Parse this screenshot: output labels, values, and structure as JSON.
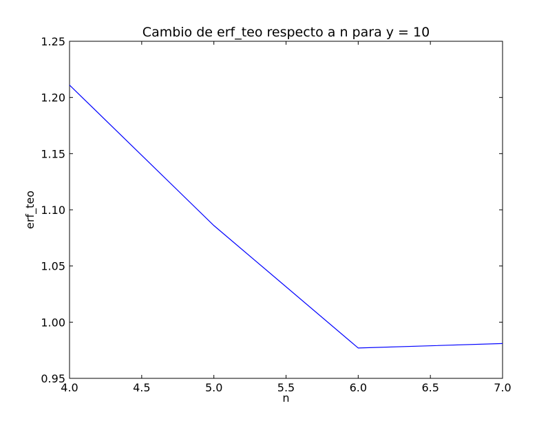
{
  "chart_data": {
    "type": "line",
    "title": "Cambio de erf_teo respecto a n para y = 10",
    "xlabel": "n",
    "ylabel": "erf_teo",
    "xlim": [
      4.0,
      7.0
    ],
    "ylim": [
      0.95,
      1.25
    ],
    "x_ticks": [
      "4.0",
      "4.5",
      "5.0",
      "5.5",
      "6.0",
      "6.5",
      "7.0"
    ],
    "y_ticks": [
      "0.95",
      "1.00",
      "1.05",
      "1.10",
      "1.15",
      "1.20",
      "1.25"
    ],
    "grid": false,
    "series": [
      {
        "color": "#0000ff",
        "x": [
          4,
          5,
          6,
          7
        ],
        "y": [
          1.211,
          1.086,
          0.977,
          0.981
        ]
      }
    ]
  }
}
